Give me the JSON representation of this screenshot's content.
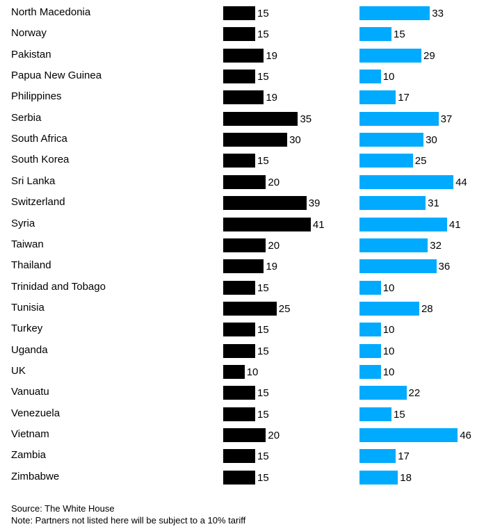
{
  "chart_data": {
    "type": "bar",
    "orientation": "horizontal",
    "categories": [
      "North Macedonia",
      "Norway",
      "Pakistan",
      "Papua New Guinea",
      "Philippines",
      "Serbia",
      "South Africa",
      "South Korea",
      "Sri Lanka",
      "Switzerland",
      "Syria",
      "Taiwan",
      "Thailand",
      "Trinidad and Tobago",
      "Tunisia",
      "Turkey",
      "Uganda",
      "UK",
      "Vanuatu",
      "Venezuela",
      "Vietnam",
      "Zambia",
      "Zimbabwe"
    ],
    "series": [
      {
        "color": "#000000",
        "values": [
          15,
          15,
          19,
          15,
          19,
          35,
          30,
          15,
          20,
          39,
          41,
          20,
          19,
          15,
          25,
          15,
          15,
          10,
          15,
          15,
          20,
          15,
          15
        ]
      },
      {
        "color": "#00aaff",
        "values": [
          33,
          15,
          29,
          10,
          17,
          37,
          30,
          25,
          44,
          31,
          41,
          32,
          36,
          10,
          28,
          10,
          10,
          10,
          22,
          15,
          46,
          17,
          18
        ]
      }
    ],
    "legend": "none",
    "grid": false
  },
  "footer": {
    "source": "Source: The White House",
    "note": "Note: Partners not listed here will be subject to a 10% tariff"
  }
}
